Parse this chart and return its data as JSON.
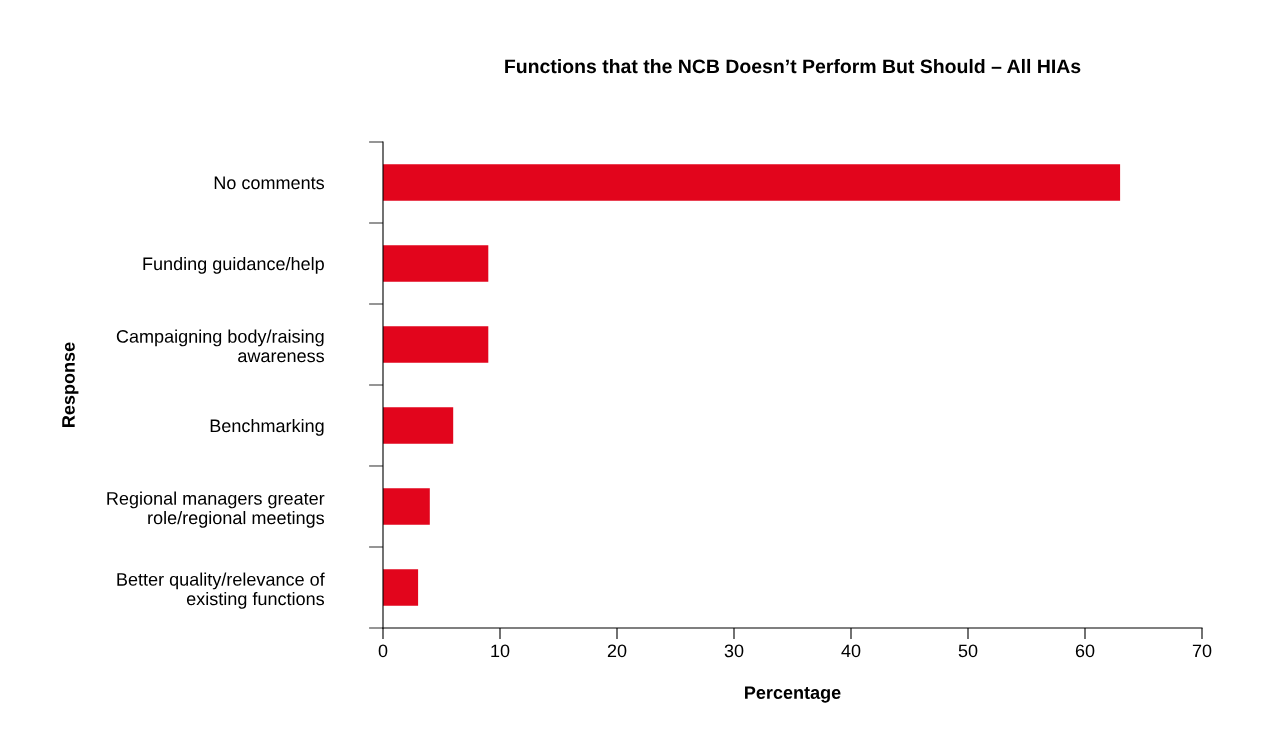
{
  "chart_data": {
    "type": "bar",
    "orientation": "horizontal",
    "title": "Functions that the NCB Doesn’t Perform But Should – All HIAs",
    "xlabel": "Percentage",
    "ylabel": "Response",
    "categories": [
      "No comments",
      "Funding guidance/help",
      "Campaigning body/raising\nawareness",
      "Benchmarking",
      "Regional managers greater\nrole/regional meetings",
      "Better quality/relevance of\nexisting functions"
    ],
    "values": [
      63,
      9,
      9,
      6,
      4,
      3
    ],
    "color": "#e2051c",
    "xlim": [
      0,
      70
    ],
    "xticks": [
      0,
      10,
      20,
      30,
      40,
      50,
      60,
      70
    ],
    "grid": false,
    "legend": false
  }
}
